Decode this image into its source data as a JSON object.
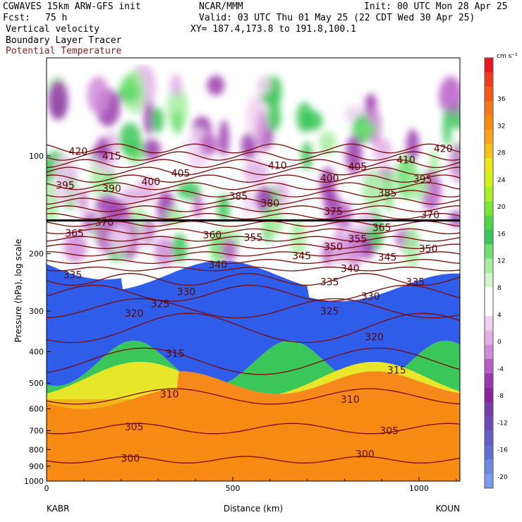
{
  "header": {
    "model": "CGWAVES 15km ARW-GFS init",
    "center": "NCAR/MMM",
    "init": "Init: 00 UTC Mon 28 Apr 25",
    "fcst_label": "Fcst:",
    "fcst_value": "75 h",
    "valid": "Valid: 03 UTC Thu 01 May 25 (22 CDT Wed 30 Apr 25)",
    "field1": "Vertical velocity",
    "field2": "Boundary Layer Tracer",
    "field3": "Potential Temperature",
    "xy": "XY= 187.4,173.8 to 191.8,100.1"
  },
  "chart_data": {
    "type": "heatmap",
    "xlabel": "Distance (km)",
    "ylabel": "Pressure (hPa), log scale",
    "xlim": [
      0,
      1110
    ],
    "ylim": [
      1000,
      50
    ],
    "log_y": true,
    "x_ticks": [
      0,
      500,
      1000
    ],
    "y_ticks": [
      1000,
      900,
      800,
      700,
      600,
      500,
      400,
      300,
      200,
      100
    ],
    "y_tick_labels": [
      "1000",
      "900",
      "800",
      "700",
      "600",
      "500",
      "400",
      "300",
      "200",
      "100"
    ],
    "x_tick_labels": [
      "0",
      "500",
      "1000"
    ],
    "left_endpoint": "KABR",
    "right_endpoint": "KOUN",
    "colorbar": {
      "unit": "cm s⁻¹",
      "labels": [
        "36",
        "32",
        "28",
        "24",
        "20",
        "16",
        "12",
        "8",
        "4",
        "0",
        "-4",
        "-8",
        "-12",
        "-16",
        "-20"
      ],
      "colors": [
        "#e8161e",
        "#f03a1e",
        "#f55a14",
        "#f7761c",
        "#f88a0c",
        "#f9a21c",
        "#f8c21a",
        "#eae61c",
        "#d2f01c",
        "#a8f02a",
        "#7ce836",
        "#4ed648",
        "#3ac658",
        "#6ee070",
        "#a4eea0",
        "#d2f6cc",
        "#ffffff",
        "#ffffff",
        "#f0d2f0",
        "#e2b0e6",
        "#d08ad8",
        "#b85ec6",
        "#9a38ae",
        "#8a229c",
        "#7a3aa8",
        "#6e4ab8",
        "#6460c6",
        "#6070d2",
        "#6c88e0",
        "#7c9cec"
      ]
    },
    "theta_contours": {
      "unit": "K",
      "labels": [
        {
          "value": "420",
          "x": 85,
          "p": 97
        },
        {
          "value": "415",
          "x": 175,
          "p": 100
        },
        {
          "value": "410",
          "x": 620,
          "p": 107
        },
        {
          "value": "410",
          "x": 965,
          "p": 103
        },
        {
          "value": "420",
          "x": 1065,
          "p": 95
        },
        {
          "value": "405",
          "x": 360,
          "p": 113
        },
        {
          "value": "405",
          "x": 835,
          "p": 108
        },
        {
          "value": "400",
          "x": 280,
          "p": 120
        },
        {
          "value": "400",
          "x": 760,
          "p": 117
        },
        {
          "value": "395",
          "x": 50,
          "p": 123
        },
        {
          "value": "395",
          "x": 1010,
          "p": 118
        },
        {
          "value": "390",
          "x": 175,
          "p": 126
        },
        {
          "value": "385",
          "x": 515,
          "p": 133
        },
        {
          "value": "385",
          "x": 915,
          "p": 130
        },
        {
          "value": "380",
          "x": 600,
          "p": 140
        },
        {
          "value": "375",
          "x": 770,
          "p": 148
        },
        {
          "value": "370",
          "x": 155,
          "p": 160
        },
        {
          "value": "370",
          "x": 1030,
          "p": 152
        },
        {
          "value": "365",
          "x": 75,
          "p": 173
        },
        {
          "value": "365",
          "x": 900,
          "p": 166
        },
        {
          "value": "360",
          "x": 445,
          "p": 175
        },
        {
          "value": "355",
          "x": 555,
          "p": 178
        },
        {
          "value": "355",
          "x": 835,
          "p": 180
        },
        {
          "value": "350",
          "x": 770,
          "p": 190
        },
        {
          "value": "350",
          "x": 1025,
          "p": 193
        },
        {
          "value": "345",
          "x": 685,
          "p": 203
        },
        {
          "value": "345",
          "x": 915,
          "p": 205
        },
        {
          "value": "340",
          "x": 460,
          "p": 216
        },
        {
          "value": "340",
          "x": 815,
          "p": 222
        },
        {
          "value": "335",
          "x": 70,
          "p": 232
        },
        {
          "value": "335",
          "x": 760,
          "p": 244
        },
        {
          "value": "335",
          "x": 990,
          "p": 244
        },
        {
          "value": "330",
          "x": 375,
          "p": 262
        },
        {
          "value": "330",
          "x": 870,
          "p": 270
        },
        {
          "value": "325",
          "x": 305,
          "p": 285
        },
        {
          "value": "325",
          "x": 760,
          "p": 300
        },
        {
          "value": "320",
          "x": 235,
          "p": 305
        },
        {
          "value": "320",
          "x": 880,
          "p": 360
        },
        {
          "value": "315",
          "x": 345,
          "p": 405
        },
        {
          "value": "315",
          "x": 940,
          "p": 455
        },
        {
          "value": "310",
          "x": 330,
          "p": 540
        },
        {
          "value": "310",
          "x": 815,
          "p": 560
        },
        {
          "value": "305",
          "x": 235,
          "p": 680
        },
        {
          "value": "305",
          "x": 920,
          "p": 700
        },
        {
          "value": "300",
          "x": 225,
          "p": 850
        },
        {
          "value": "300",
          "x": 855,
          "p": 825
        }
      ]
    }
  }
}
